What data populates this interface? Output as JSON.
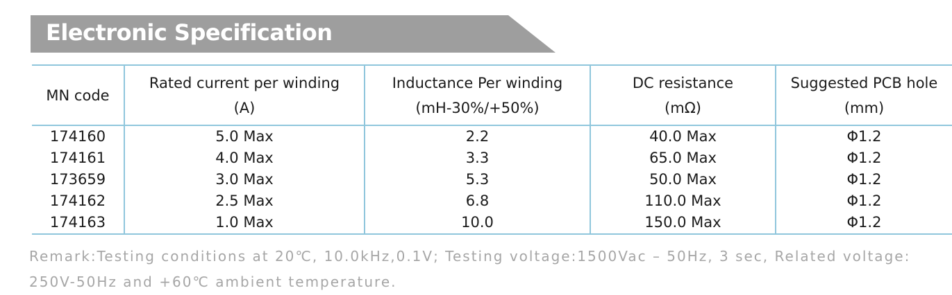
{
  "title": "Electronic Specification",
  "table": {
    "headers": [
      {
        "line1": "MN code",
        "line2": ""
      },
      {
        "line1": "Rated current per winding",
        "line2": "(A)"
      },
      {
        "line1": "Inductance Per winding",
        "line2": "(mH-30%/+50%)"
      },
      {
        "line1": "DC resistance",
        "line2": "(mΩ)"
      },
      {
        "line1": "Suggested PCB hole",
        "line2": "(mm)"
      }
    ],
    "rows": [
      [
        "174160",
        "5.0 Max",
        "2.2",
        "40.0 Max",
        "Φ1.2"
      ],
      [
        "174161",
        "4.0 Max",
        "3.3",
        "65.0 Max",
        "Φ1.2"
      ],
      [
        "173659",
        "3.0 Max",
        "5.3",
        "50.0 Max",
        "Φ1.2"
      ],
      [
        "174162",
        "2.5 Max",
        "6.8",
        "110.0 Max",
        "Φ1.2"
      ],
      [
        "174163",
        "1.0 Max",
        "10.0",
        "150.0 Max",
        "Φ1.2"
      ]
    ]
  },
  "remark": {
    "line1": "Remark:Testing conditions at 20℃, 10.0kHz,0.1V; Testing voltage:1500Vac – 50Hz, 3 sec, Related voltage:",
    "line2": "250V-50Hz and +60℃ ambient temperature."
  },
  "colors": {
    "banner": "#9e9e9e",
    "table_border": "#8fc6dc",
    "remark_text": "#a6a6a6"
  }
}
